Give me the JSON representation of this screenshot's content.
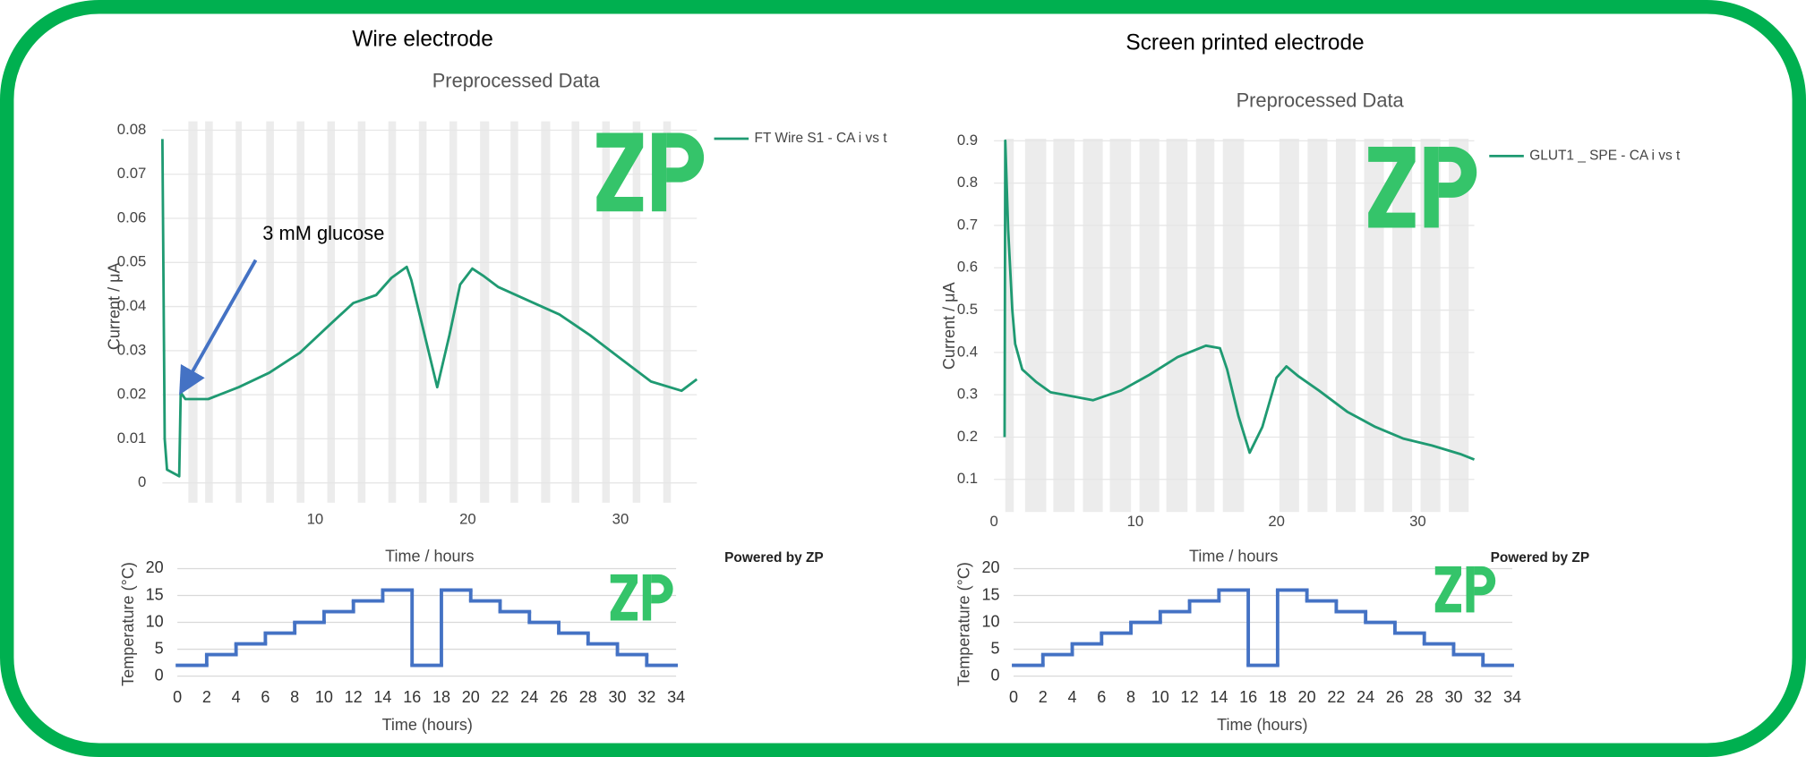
{
  "panels": [
    {
      "heading": "Wire electrode",
      "footer": "Powered by ZP"
    },
    {
      "heading": "Screen printed electrode",
      "footer": "Powered by ZP"
    }
  ],
  "chart_data": [
    {
      "type": "line",
      "title": "Preprocessed Data",
      "x_label": "Time / hours",
      "y_label": "Current / μA",
      "annotation": "3 mM glucose",
      "x": [
        0,
        0.15,
        0.3,
        1.1,
        1.2,
        1.5,
        2,
        3,
        5,
        7,
        9,
        11,
        12.5,
        14,
        15,
        16,
        16.3,
        17,
        18,
        18.8,
        19.5,
        20.3,
        21,
        22,
        24,
        26,
        28,
        30,
        32,
        34,
        35
      ],
      "series": [
        {
          "name": "FT Wire S1 - CA i vs t",
          "color": "#1f9a72",
          "values": [
            0.078,
            0.01,
            0.003,
            0.0015,
            0.0205,
            0.019,
            0.019,
            0.019,
            0.0217,
            0.025,
            0.0295,
            0.036,
            0.0408,
            0.0426,
            0.0465,
            0.049,
            0.046,
            0.036,
            0.0217,
            0.0335,
            0.045,
            0.0486,
            0.047,
            0.0444,
            0.0413,
            0.0382,
            0.0335,
            0.0282,
            0.023,
            0.0209,
            0.0235
          ]
        }
      ],
      "bands": [
        [
          1.7,
          2.3
        ],
        [
          2.8,
          3.3
        ],
        [
          4.8,
          5.2
        ],
        [
          6.8,
          7.3
        ],
        [
          8.8,
          9.3
        ],
        [
          10.8,
          11.3
        ],
        [
          12.8,
          13.3
        ],
        [
          14.8,
          15.3
        ],
        [
          16.8,
          17.3
        ],
        [
          18.8,
          19.3
        ],
        [
          20.8,
          21.4
        ],
        [
          22.8,
          23.3
        ],
        [
          24.8,
          25.4
        ],
        [
          26.8,
          27.3
        ],
        [
          28.8,
          29.3
        ],
        [
          30.8,
          31.3
        ],
        [
          32.8,
          33.3
        ]
      ],
      "xlim": [
        0,
        35
      ],
      "xticks": [
        10,
        20,
        30
      ],
      "ylim": [
        -0.0045,
        0.082
      ],
      "yticks": [
        0,
        0.01,
        0.02,
        0.03,
        0.04,
        0.05,
        0.06,
        0.07,
        0.08
      ],
      "grid": true
    },
    {
      "type": "line",
      "title": "Preprocessed Data",
      "x_label": "Time / hours",
      "y_label": "Current / μA",
      "x": [
        0.75,
        0.8,
        1.0,
        1.3,
        1.5,
        2,
        3,
        4,
        5,
        7,
        9,
        11,
        13,
        15,
        16,
        16.5,
        17.3,
        18.1,
        19,
        20,
        20.7,
        21.5,
        23,
        25,
        27,
        29,
        31,
        33,
        34
      ],
      "series": [
        {
          "name": "GLUT1 _ SPE - CA i vs t",
          "color": "#1f9a72",
          "values": [
            0.2,
            0.9,
            0.69,
            0.5,
            0.42,
            0.36,
            0.33,
            0.306,
            0.3,
            0.287,
            0.31,
            0.347,
            0.389,
            0.416,
            0.41,
            0.36,
            0.25,
            0.163,
            0.224,
            0.34,
            0.367,
            0.345,
            0.31,
            0.26,
            0.224,
            0.196,
            0.18,
            0.16,
            0.147
          ]
        }
      ],
      "bands": [
        [
          0.8,
          1.4
        ],
        [
          2.2,
          3.7
        ],
        [
          4.2,
          5.7
        ],
        [
          6.3,
          7.7
        ],
        [
          8.2,
          9.7
        ],
        [
          10.3,
          11.7
        ],
        [
          12.2,
          13.7
        ],
        [
          14.3,
          15.6
        ],
        [
          16.2,
          17.7
        ],
        [
          20.2,
          21.6
        ],
        [
          22.2,
          23.6
        ],
        [
          24.2,
          25.6
        ],
        [
          26.2,
          27.6
        ],
        [
          28.2,
          29.6
        ],
        [
          30.2,
          31.6
        ],
        [
          32.2,
          33.6
        ]
      ],
      "xlim": [
        0,
        34
      ],
      "xticks": [
        0,
        10,
        20,
        30
      ],
      "ylim": [
        0.023,
        0.905
      ],
      "yticks": [
        0.1,
        0.2,
        0.3,
        0.4,
        0.5,
        0.6,
        0.7,
        0.8,
        0.9
      ],
      "grid": true
    },
    {
      "type": "step",
      "x_label": "Time (hours)",
      "y_label": "Temperature (°C)",
      "color": "#4472c4",
      "x": [
        0,
        2,
        4,
        6,
        8,
        10,
        12,
        14,
        16,
        18,
        20,
        22,
        24,
        26,
        28,
        30,
        32
      ],
      "values": [
        2,
        4,
        6,
        8,
        10,
        12,
        14,
        16,
        2,
        16,
        14,
        12,
        10,
        8,
        6,
        4,
        2
      ],
      "xlim": [
        0,
        34
      ],
      "xticks": [
        0,
        2,
        4,
        6,
        8,
        10,
        12,
        14,
        16,
        18,
        20,
        22,
        24,
        26,
        28,
        30,
        32,
        34
      ],
      "ylim": [
        0,
        20
      ],
      "yticks": [
        0,
        5,
        10,
        15,
        20
      ],
      "grid": true
    },
    {
      "type": "step",
      "x_label": "Time (hours)",
      "y_label": "Temperature (°C)",
      "color": "#4472c4",
      "x": [
        0,
        2,
        4,
        6,
        8,
        10,
        12,
        14,
        16,
        18,
        20,
        22,
        24,
        26,
        28,
        30,
        32
      ],
      "values": [
        2,
        4,
        6,
        8,
        10,
        12,
        14,
        16,
        2,
        16,
        14,
        12,
        10,
        8,
        6,
        4,
        2
      ],
      "xlim": [
        0,
        34
      ],
      "xticks": [
        0,
        2,
        4,
        6,
        8,
        10,
        12,
        14,
        16,
        18,
        20,
        22,
        24,
        26,
        28,
        30,
        32,
        34
      ],
      "ylim": [
        0,
        20
      ],
      "yticks": [
        0,
        5,
        10,
        15,
        20
      ],
      "grid": true
    }
  ]
}
